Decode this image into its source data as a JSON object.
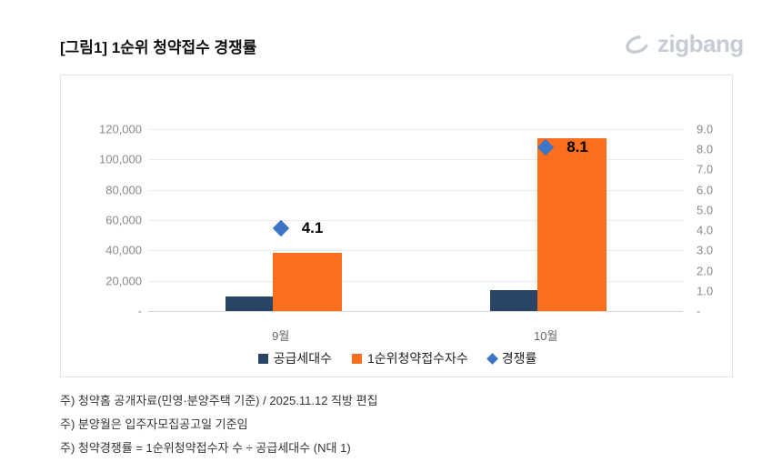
{
  "header": {
    "title": "[그림1] 1순위 청약접수 경쟁률",
    "logo_text": "zigbang"
  },
  "chart_data": {
    "type": "bar",
    "title": "[그림1] 1순위 청약접수 경쟁률",
    "categories": [
      "9월",
      "10월"
    ],
    "series": [
      {
        "name": "공급세대수",
        "type": "bar",
        "axis": "left",
        "color": "#2a4466",
        "values": [
          9400,
          14100
        ]
      },
      {
        "name": "1순위청약접수자수",
        "type": "bar",
        "axis": "left",
        "color": "#fa6e1d",
        "values": [
          38500,
          114300
        ]
      },
      {
        "name": "경쟁률",
        "type": "marker",
        "axis": "right",
        "color": "#3b74c9",
        "values": [
          4.1,
          8.1
        ],
        "labels": [
          "4.1",
          "8.1"
        ]
      }
    ],
    "left_axis": {
      "max": 120000,
      "ticks": [
        "120,000",
        "100,000",
        "80,000",
        "60,000",
        "40,000",
        "20,000",
        "-"
      ]
    },
    "right_axis": {
      "max": 9.0,
      "ticks": [
        "9.0",
        "8.0",
        "7.0",
        "6.0",
        "5.0",
        "4.0",
        "3.0",
        "2.0",
        "1.0",
        "-"
      ]
    },
    "grid": true,
    "legend_position": "bottom"
  },
  "footnotes": [
    "주) 청약홈 공개자료(민영·분양주택 기준) / 2025.11.12 직방 편집",
    "주) 분양월은 입주자모집공고일 기준임",
    "주) 청약경쟁률 = 1순위청약접수자 수 ÷ 공급세대수 (N대 1)"
  ],
  "colors": {
    "supply_bar": "#2a4466",
    "applicants_bar": "#fa6e1d",
    "rate_marker": "#3b74c9",
    "logo_gray": "#c7cbd3"
  }
}
